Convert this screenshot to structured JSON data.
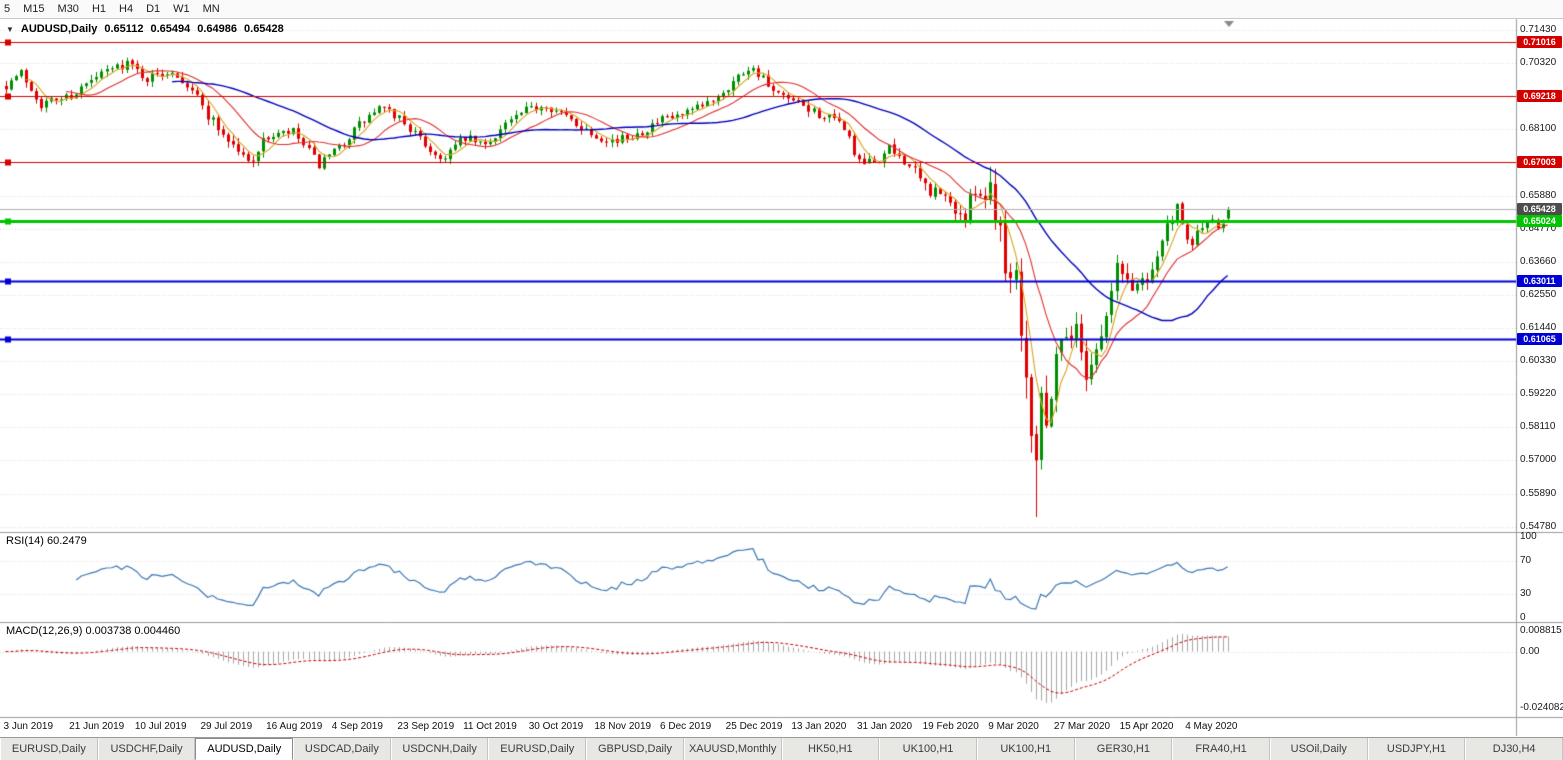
{
  "toolbar": {
    "timeframes": [
      "5",
      "M15",
      "M30",
      "H1",
      "H4",
      "D1",
      "W1",
      "MN"
    ]
  },
  "chart": {
    "title": "AUDUSD,Daily",
    "open": "0.65112",
    "high": "0.65494",
    "low": "0.64986",
    "close": "0.65428"
  },
  "price_scale": {
    "tick_start": 0.5478,
    "tick_step": 0.0111,
    "tick_count": 16,
    "decimals": 5
  },
  "hlines": [
    {
      "value": 0.71016,
      "label": "0.71016",
      "color": "#d40000",
      "lw": 1
    },
    {
      "value": 0.69218,
      "label": "0.69218",
      "color": "#d40000",
      "lw": 1
    },
    {
      "value": 0.67003,
      "label": "0.67003",
      "color": "#d40000",
      "lw": 1
    },
    {
      "value": 0.65024,
      "label": "0.65024",
      "color": "#00c400",
      "lw": 3
    },
    {
      "value": 0.63011,
      "label": "0.63011",
      "color": "#0000d4",
      "lw": 2
    },
    {
      "value": 0.61065,
      "label": "0.61065",
      "color": "#0000d4",
      "lw": 2
    }
  ],
  "current_price": {
    "value": 0.65428,
    "label": "0.65428",
    "line_color": "#b0b0b0",
    "bg": "#4d4d4d"
  },
  "chart_data": {
    "type": "candlestick",
    "symbol": "AUDUSD",
    "timeframe": "Daily",
    "bar_count": 243,
    "seed": 7,
    "ylim": [
      0.546,
      0.718
    ],
    "up_color": "#008f00",
    "down_color": "#e00000",
    "label_every": 13,
    "x_labels": [
      "3 Jun 2019",
      "21 Jun 2019",
      "10 Jul 2019",
      "29 Jul 2019",
      "16 Aug 2019",
      "4 Sep 2019",
      "23 Sep 2019",
      "11 Oct 2019",
      "30 Oct 2019",
      "18 Nov 2019",
      "6 Dec 2019",
      "25 Dec 2019",
      "13 Jan 2020",
      "31 Jan 2020",
      "19 Feb 2020",
      "9 Mar 2020",
      "27 Mar 2020",
      "15 Apr 2020",
      "4 May 2020"
    ],
    "close_waypoints": [
      [
        0,
        0.696
      ],
      [
        3,
        0.7
      ],
      [
        7,
        0.6895
      ],
      [
        13,
        0.6925
      ],
      [
        20,
        0.7005
      ],
      [
        24,
        0.7035
      ],
      [
        28,
        0.698
      ],
      [
        33,
        0.701
      ],
      [
        37,
        0.6945
      ],
      [
        40,
        0.686
      ],
      [
        44,
        0.6775
      ],
      [
        48,
        0.67
      ],
      [
        52,
        0.6785
      ],
      [
        57,
        0.68
      ],
      [
        62,
        0.669
      ],
      [
        65,
        0.673
      ],
      [
        70,
        0.6825
      ],
      [
        74,
        0.688
      ],
      [
        78,
        0.685
      ],
      [
        82,
        0.6775
      ],
      [
        86,
        0.671
      ],
      [
        91,
        0.678
      ],
      [
        95,
        0.6755
      ],
      [
        99,
        0.683
      ],
      [
        104,
        0.688
      ],
      [
        107,
        0.6895
      ],
      [
        111,
        0.685
      ],
      [
        117,
        0.679
      ],
      [
        121,
        0.677
      ],
      [
        126,
        0.6805
      ],
      [
        130,
        0.684
      ],
      [
        134,
        0.6855
      ],
      [
        138,
        0.6885
      ],
      [
        143,
        0.6955
      ],
      [
        147,
        0.702
      ],
      [
        149,
        0.7
      ],
      [
        152,
        0.693
      ],
      [
        156,
        0.69
      ],
      [
        160,
        0.687
      ],
      [
        166,
        0.682
      ],
      [
        169,
        0.669
      ],
      [
        172,
        0.67
      ],
      [
        175,
        0.674
      ],
      [
        178,
        0.671
      ],
      [
        182,
        0.6615
      ],
      [
        185,
        0.659
      ],
      [
        188,
        0.6545
      ],
      [
        190,
        0.651
      ],
      [
        192,
        0.662
      ],
      [
        194,
        0.658
      ],
      [
        195,
        0.663
      ],
      [
        197,
        0.648
      ],
      [
        199,
        0.63
      ],
      [
        200,
        0.6345
      ],
      [
        201,
        0.617
      ],
      [
        202,
        0.6
      ],
      [
        203,
        0.583
      ],
      [
        204,
        0.5745
      ],
      [
        205,
        0.593
      ],
      [
        206,
        0.58
      ],
      [
        207,
        0.595
      ],
      [
        208,
        0.6065
      ],
      [
        210,
        0.613
      ],
      [
        212,
        0.6135
      ],
      [
        214,
        0.6
      ],
      [
        216,
        0.6075
      ],
      [
        218,
        0.618
      ],
      [
        220,
        0.635
      ],
      [
        223,
        0.628
      ],
      [
        226,
        0.632
      ],
      [
        228,
        0.639
      ],
      [
        230,
        0.648
      ],
      [
        232,
        0.6535
      ],
      [
        234,
        0.6425
      ],
      [
        236,
        0.6455
      ],
      [
        238,
        0.651
      ],
      [
        240,
        0.6465
      ],
      [
        242,
        0.654
      ]
    ],
    "vol_zones": [
      [
        0,
        0.0036
      ],
      [
        40,
        0.0045
      ],
      [
        52,
        0.0035
      ],
      [
        143,
        0.0038
      ],
      [
        169,
        0.0045
      ],
      [
        182,
        0.006
      ],
      [
        196,
        0.015
      ],
      [
        205,
        0.013
      ],
      [
        208,
        0.0085
      ],
      [
        218,
        0.007
      ],
      [
        228,
        0.0055
      ]
    ],
    "wick_overrides": [
      {
        "i": 204,
        "low": 0.551
      },
      {
        "i": 195,
        "high": 0.6685
      },
      {
        "i": 200,
        "high": 0.6365
      }
    ],
    "last_candle": {
      "o": 0.65112,
      "h": 0.65494,
      "l": 0.64986,
      "c": 0.65428
    },
    "moving_averages": [
      {
        "period": 5,
        "color": "#d8a520",
        "width": 1.1
      },
      {
        "period": 13,
        "color": "#e03030",
        "width": 1.1
      },
      {
        "period": 34,
        "color": "#0000bb",
        "width": 1.4
      }
    ]
  },
  "rsi": {
    "label": "RSI(14) 60.2479",
    "period": 14,
    "color": "#3c78b4",
    "levels": [
      70,
      30
    ],
    "ticks": [
      "100",
      "70",
      "30",
      "0"
    ]
  },
  "macd": {
    "label": "MACD(12,26,9) 0.003738 0.004460",
    "fast": 12,
    "slow": 26,
    "signal": 9,
    "range": [
      -0.0262,
      0.0105
    ],
    "hist_color": "#a8a8a8",
    "signal_color": "#cc0000",
    "ticks": [
      {
        "v": 0.008815,
        "text": "0.008815"
      },
      {
        "v": 0,
        "text": "0.00"
      },
      {
        "v": -0.024082,
        "text": "-0.024082"
      }
    ]
  },
  "tabs": {
    "active_index": 2,
    "items": [
      "EURUSD,Daily",
      "USDCHF,Daily",
      "AUDUSD,Daily",
      "USDCAD,Daily",
      "USDCNH,Daily",
      "EURUSD,Daily",
      "GBPUSD,Daily",
      "XAUUSD,Monthly",
      "HK50,H1",
      "UK100,H1",
      "UK100,H1",
      "GER30,H1",
      "FRA40,H1",
      "USOil,Daily",
      "USDJPY,H1",
      "DJ30,H4"
    ]
  }
}
